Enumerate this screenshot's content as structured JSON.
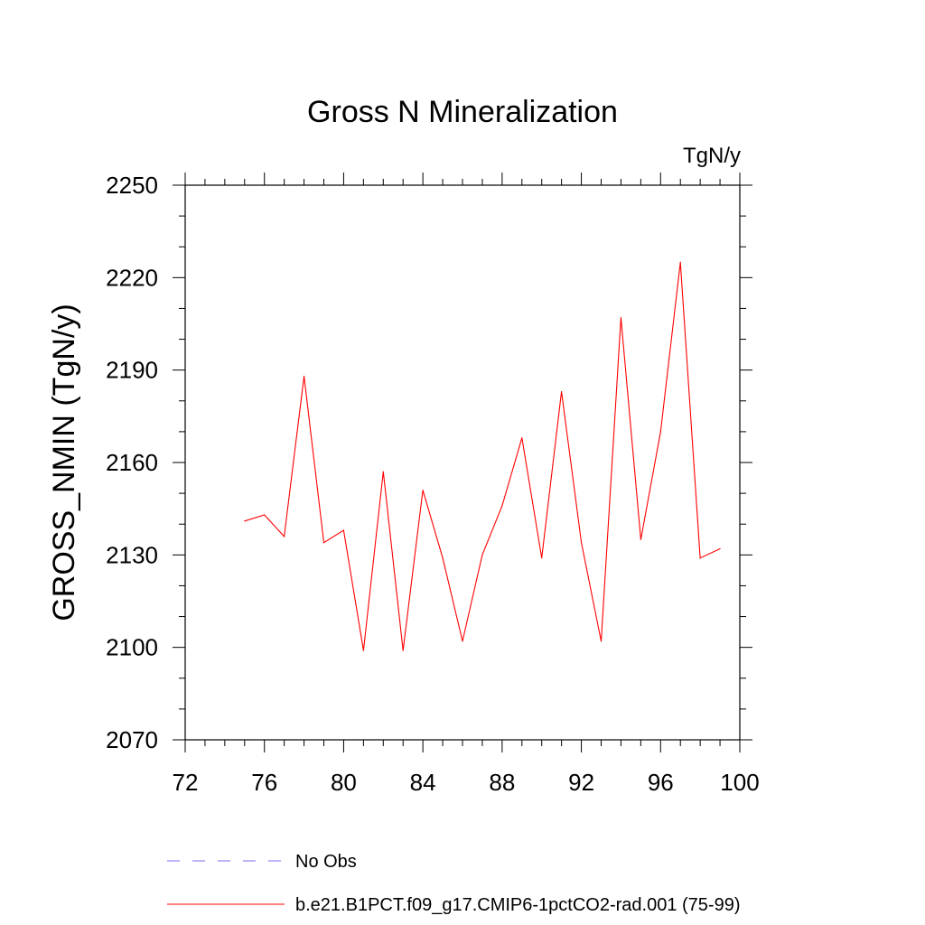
{
  "chart_data": {
    "type": "line",
    "title": "Gross N Mineralization",
    "units": "TgN/y",
    "ylabel": "GROSS_NMIN  (TgN/y)",
    "xlabel": "",
    "xlim": [
      72,
      100
    ],
    "ylim": [
      2070,
      2250
    ],
    "x_ticks": [
      72,
      76,
      80,
      84,
      88,
      92,
      96,
      100
    ],
    "y_ticks": [
      2070,
      2100,
      2130,
      2160,
      2190,
      2220,
      2250
    ],
    "grid": false,
    "legend_position": "bottom",
    "series": [
      {
        "name": "b.e21.B1PCT.f09_g17.CMIP6-1pctCO2-rad.001 (75-99)",
        "color": "#ff0000",
        "style": "solid",
        "x": [
          75,
          76,
          77,
          78,
          79,
          80,
          81,
          82,
          83,
          84,
          85,
          86,
          87,
          88,
          89,
          90,
          91,
          92,
          93,
          94,
          95,
          96,
          97,
          98,
          99
        ],
        "y": [
          2141,
          2143,
          2136,
          2188,
          2134,
          2138,
          2099,
          2157,
          2099,
          2151,
          2129,
          2102,
          2130,
          2146,
          2168,
          2129,
          2183,
          2134,
          2102,
          2207,
          2135,
          2170,
          2225,
          2129,
          2132
        ]
      }
    ],
    "legend": [
      {
        "label": "No Obs",
        "color": "#7b68ee",
        "style": "dashed"
      },
      {
        "label": "b.e21.B1PCT.f09_g17.CMIP6-1pctCO2-rad.001 (75-99)",
        "color": "#ff0000",
        "style": "solid"
      }
    ]
  }
}
